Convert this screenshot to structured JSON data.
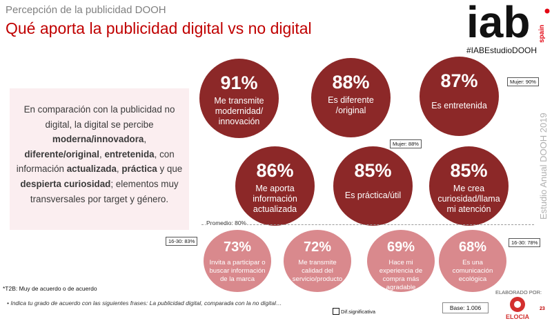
{
  "header": {
    "subtitle": "Percepción de la publicidad DOOH",
    "title": "Qué aporta la publicidad digital vs no digital",
    "hashtag": "#IABEstudioDOOH",
    "vertical_text": "Estudio Anual DOOH 2019",
    "logo_text": "iab",
    "logo_sub": "spain"
  },
  "summary": {
    "t1": "En comparación con la publicidad no digital, la digital se percibe ",
    "b1": "moderna/innovadora",
    "t2": ", ",
    "b2": "diferente/original",
    "t3": ", ",
    "b3": "entretenida",
    "t4": ", con información ",
    "b4": "actualizada",
    "t5": ", ",
    "b5": "práctica",
    "t6": " y que ",
    "b6": "despierta curiosidad",
    "t7": "; elementos muy transversales por target y género."
  },
  "top_circles": [
    {
      "pct": "91%",
      "label": "Me transmite modernidad/ innovación"
    },
    {
      "pct": "88%",
      "label": "Es diferente /original"
    },
    {
      "pct": "87%",
      "label": "Es entretenida"
    },
    {
      "pct": "86%",
      "label": "Me aporta información actualizada"
    },
    {
      "pct": "85%",
      "label": "Es práctica/útil"
    },
    {
      "pct": "85%",
      "label": "Me crea curiosidad/llama mi atención"
    }
  ],
  "bottom_circles": [
    {
      "pct": "73%",
      "label": "Invita a participar o buscar información de la marca"
    },
    {
      "pct": "72%",
      "label": "Me transmite calidad del servicio/producto"
    },
    {
      "pct": "69%",
      "label": "Hace mi experiencia de compra más agradable"
    },
    {
      "pct": "68%",
      "label": "Es una comunicación ecológica"
    }
  ],
  "callouts": {
    "mujer_90": "Mujer: 90%",
    "mujer_88": "Mujer: 88%",
    "age_83": "16-30: 83%",
    "age_78": "16-30: 78%"
  },
  "promedio": "Promedio: 80%",
  "footnote": "*T2B: Muy de acuerdo o de acuerdo",
  "question": "•  Indica tu grado de acuerdo con las siguientes frases: La publicidad digital, comparada con la no digital…",
  "legend": "Dif.significativa",
  "base": "Base: 1.006",
  "elaborado": "ELABORADO POR:",
  "elocia_text": "ELOCIA",
  "page_number": "23",
  "colors": {
    "title_red": "#c00000",
    "dark_circle": "#8c2828",
    "light_circle": "#d9898d",
    "summary_bg": "#fbeef0"
  }
}
